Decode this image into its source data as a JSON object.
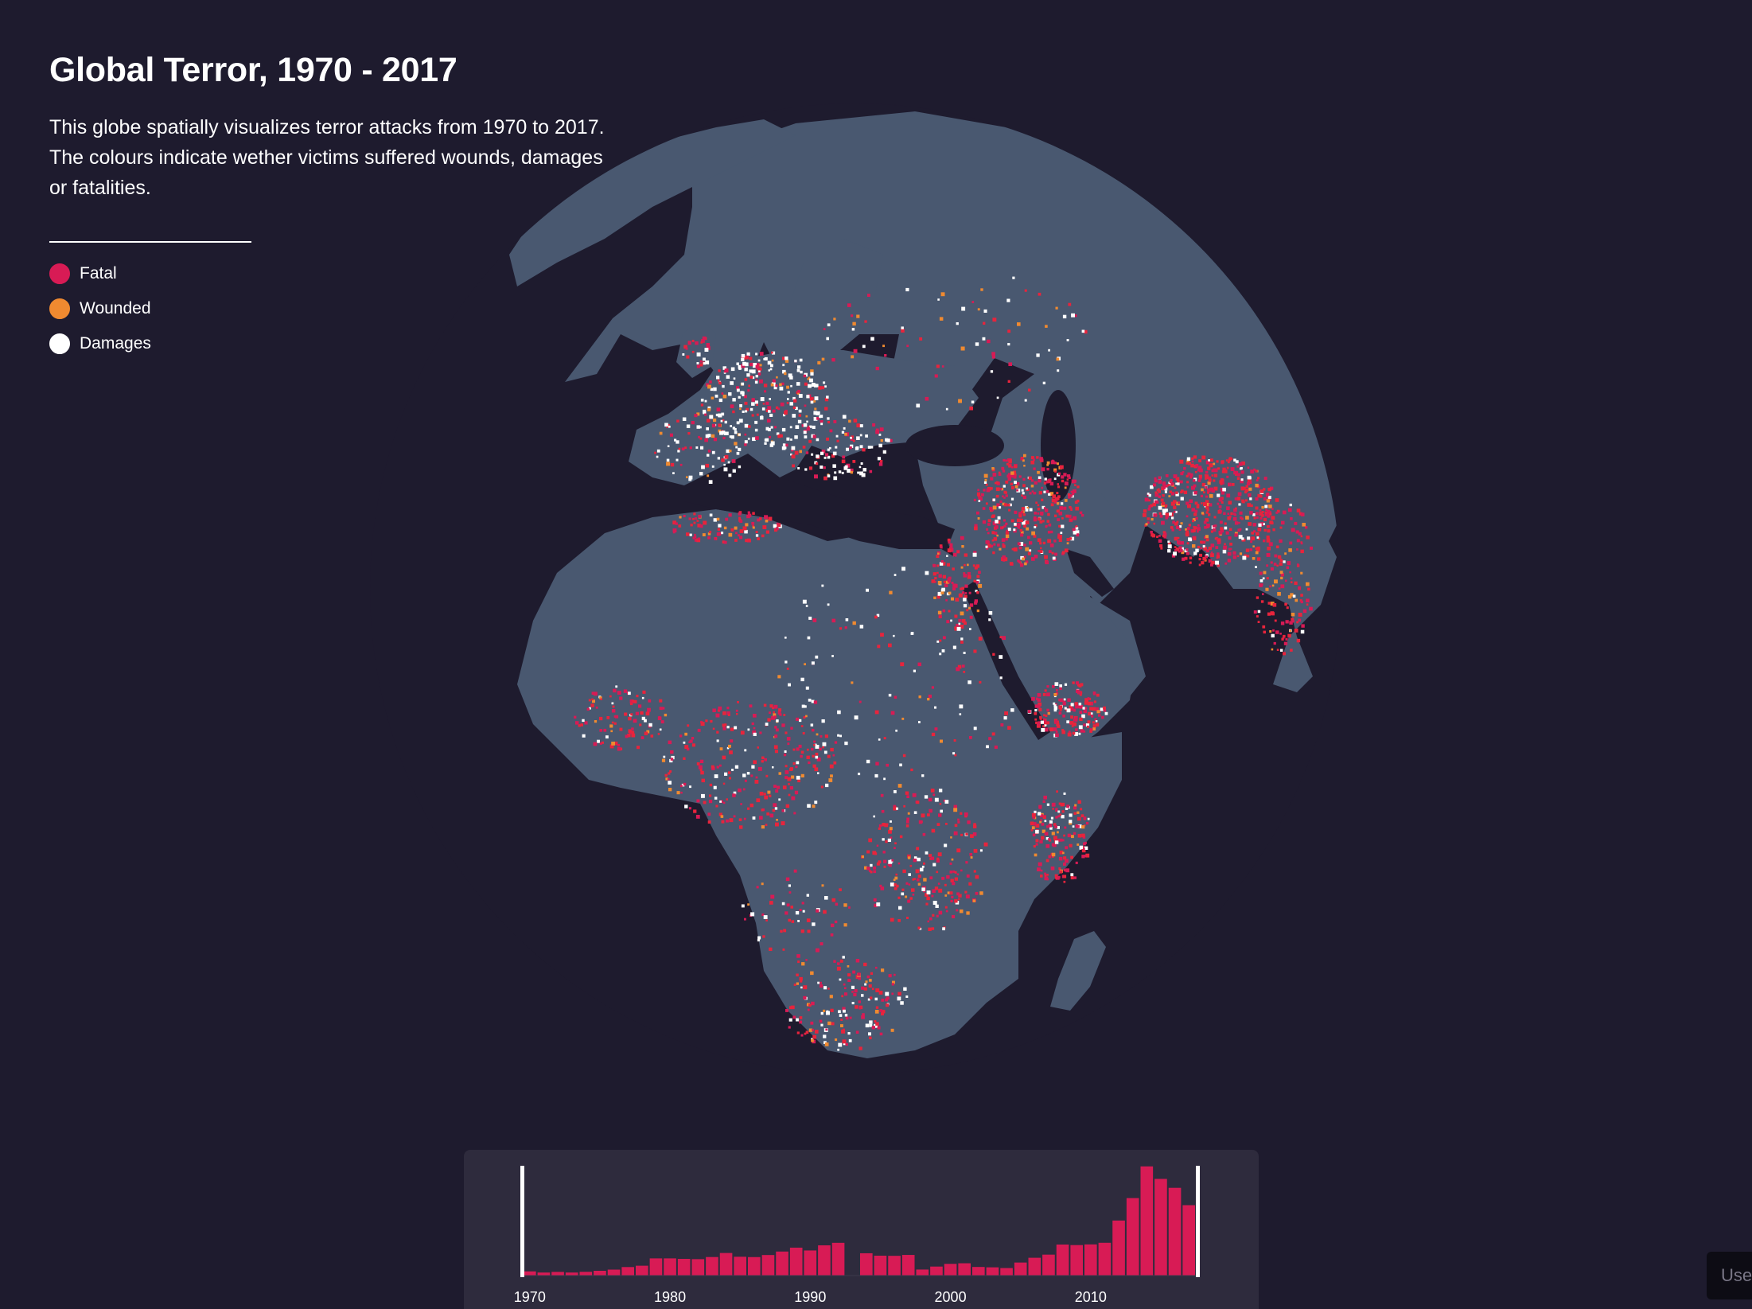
{
  "header": {
    "title": "Global Terror, 1970 - 2017",
    "description": "This globe spatially visualizes terror attacks from 1970 to 2017. The colours indicate wether victims suffered wounds, damages or fatalities."
  },
  "legend": {
    "items": [
      {
        "label": "Fatal",
        "color": "#d81b55"
      },
      {
        "label": "Wounded",
        "color": "#f08a30"
      },
      {
        "label": "Damages",
        "color": "#ffffff"
      }
    ]
  },
  "colors": {
    "background": "#1e1b2e",
    "land": "#495870",
    "ocean": "#1e1b2e",
    "bar": "#d81b55",
    "panel": "#2e2b3d"
  },
  "corner_tab": {
    "label": "Use"
  },
  "chart_data": {
    "type": "bar",
    "xlabel": "",
    "ylabel": "",
    "x_ticks": [
      "1970",
      "1980",
      "1990",
      "2000",
      "2010"
    ],
    "categories": [
      1970,
      1971,
      1972,
      1973,
      1974,
      1975,
      1976,
      1977,
      1978,
      1979,
      1980,
      1981,
      1982,
      1983,
      1984,
      1985,
      1986,
      1987,
      1988,
      1989,
      1990,
      1991,
      1992,
      1993,
      1994,
      1995,
      1996,
      1997,
      1998,
      1999,
      2000,
      2001,
      2002,
      2003,
      2004,
      2005,
      2006,
      2007,
      2008,
      2009,
      2010,
      2011,
      2012,
      2013,
      2014,
      2015,
      2016,
      2017
    ],
    "values": [
      651,
      471,
      568,
      473,
      581,
      740,
      923,
      1319,
      1526,
      2662,
      2662,
      2586,
      2544,
      2870,
      3495,
      2915,
      2860,
      3183,
      3721,
      4324,
      3887,
      4683,
      5071,
      0,
      3456,
      3081,
      3058,
      3197,
      934,
      1395,
      1814,
      1906,
      1333,
      1278,
      1166,
      2017,
      2758,
      3242,
      4805,
      4721,
      4826,
      5076,
      8522,
      11996,
      16903,
      14965,
      13587,
      10900
    ],
    "ylim": [
      0,
      17000
    ],
    "brush_range": [
      1970,
      2017
    ]
  }
}
